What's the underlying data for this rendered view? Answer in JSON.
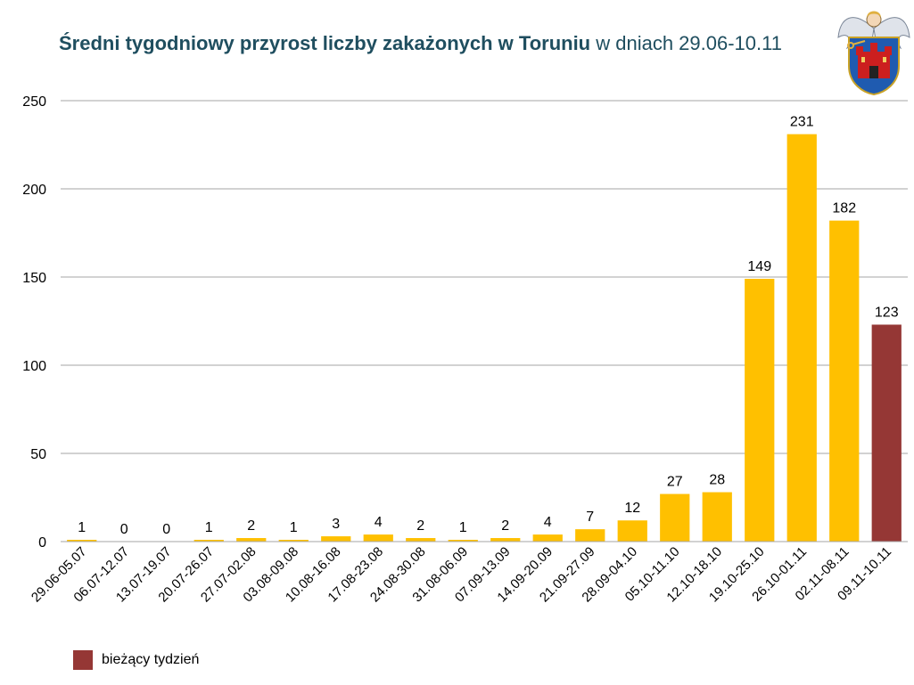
{
  "title": {
    "bold": "Średni tygodniowy przyrost liczby zakażonych w Toruniu",
    "rest": " w dniach 29.06-10.11"
  },
  "colors": {
    "bar": "#FFC000",
    "current": "#953735",
    "title": "#1F4E5F",
    "grid": "#A6A6A6"
  },
  "legend": {
    "label": "bieżący tydzień",
    "icon": "crest-of-torun-icon"
  },
  "chart_data": {
    "type": "bar",
    "title": "Średni tygodniowy przyrost liczby zakażonych w Toruniu w dniach 29.06-10.11",
    "xlabel": "",
    "ylabel": "",
    "ylim": [
      0,
      250
    ],
    "yticks": [
      0,
      50,
      100,
      150,
      200,
      250
    ],
    "grid": true,
    "legend_position": "bottom-left",
    "categories": [
      "29.06-05.07",
      "06.07-12.07",
      "13.07-19.07",
      "20.07-26.07",
      "27.07-02.08",
      "03.08-09.08",
      "10.08-16.08",
      "17.08-23.08",
      "24.08-30.08",
      "31.08-06.09",
      "07.09-13.09",
      "14.09-20.09",
      "21.09-27.09",
      "28.09-04.10",
      "05.10-11.10",
      "12.10-18.10",
      "19.10-25.10",
      "26.10-01.11",
      "02.11-08.11",
      "09.11-10.11"
    ],
    "values": [
      1,
      0,
      0,
      1,
      2,
      1,
      3,
      4,
      2,
      1,
      2,
      4,
      7,
      12,
      27,
      28,
      149,
      231,
      182,
      123
    ],
    "highlight_index": 19,
    "highlight_label": "bieżący tydzień"
  }
}
